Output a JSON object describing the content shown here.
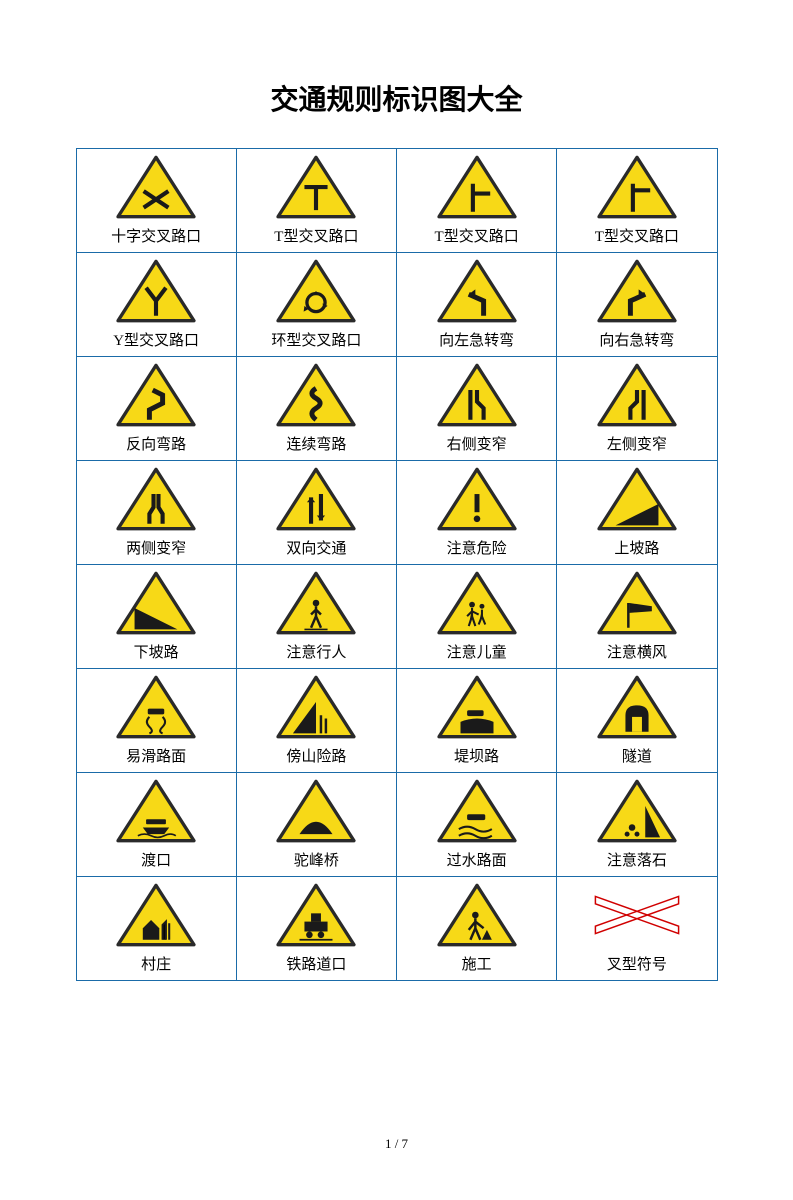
{
  "title": "交通规则标识图大全",
  "footer": "1 / 7",
  "style": {
    "border_color": "#1a6ba8",
    "tri_fill": "#f7d917",
    "tri_stroke": "#2a2a2a",
    "symbol_color": "#1a1a1a",
    "x_symbol_color": "#d00000"
  },
  "signs": [
    [
      {
        "label": "十字交叉路口",
        "icon": "cross"
      },
      {
        "label": "T型交叉路口",
        "icon": "t-up"
      },
      {
        "label": "T型交叉路口",
        "icon": "t-right"
      },
      {
        "label": "T型交叉路口",
        "icon": "t-right2"
      }
    ],
    [
      {
        "label": "Y型交叉路口",
        "icon": "y"
      },
      {
        "label": "环型交叉路口",
        "icon": "ring"
      },
      {
        "label": "向左急转弯",
        "icon": "sharp-left"
      },
      {
        "label": "向右急转弯",
        "icon": "sharp-right"
      }
    ],
    [
      {
        "label": "反向弯路",
        "icon": "reverse-curve"
      },
      {
        "label": "连续弯路",
        "icon": "winding"
      },
      {
        "label": "右侧变窄",
        "icon": "narrow-right"
      },
      {
        "label": "左侧变窄",
        "icon": "narrow-left"
      }
    ],
    [
      {
        "label": "两侧变窄",
        "icon": "narrow-both"
      },
      {
        "label": "双向交通",
        "icon": "two-way"
      },
      {
        "label": "注意危险",
        "icon": "danger"
      },
      {
        "label": "上坡路",
        "icon": "uphill"
      }
    ],
    [
      {
        "label": "下坡路",
        "icon": "downhill"
      },
      {
        "label": "注意行人",
        "icon": "pedestrian"
      },
      {
        "label": "注意儿童",
        "icon": "children"
      },
      {
        "label": "注意横风",
        "icon": "crosswind"
      }
    ],
    [
      {
        "label": "易滑路面",
        "icon": "slippery"
      },
      {
        "label": "傍山险路",
        "icon": "mountain"
      },
      {
        "label": "堤坝路",
        "icon": "embankment"
      },
      {
        "label": "隧道",
        "icon": "tunnel"
      }
    ],
    [
      {
        "label": "渡口",
        "icon": "ferry"
      },
      {
        "label": "驼峰桥",
        "icon": "hump"
      },
      {
        "label": "过水路面",
        "icon": "water"
      },
      {
        "label": "注意落石",
        "icon": "rockfall"
      }
    ],
    [
      {
        "label": "村庄",
        "icon": "village"
      },
      {
        "label": "铁路道口",
        "icon": "railway"
      },
      {
        "label": "施工",
        "icon": "construction"
      },
      {
        "label": "叉型符号",
        "icon": "x-symbol"
      }
    ]
  ]
}
